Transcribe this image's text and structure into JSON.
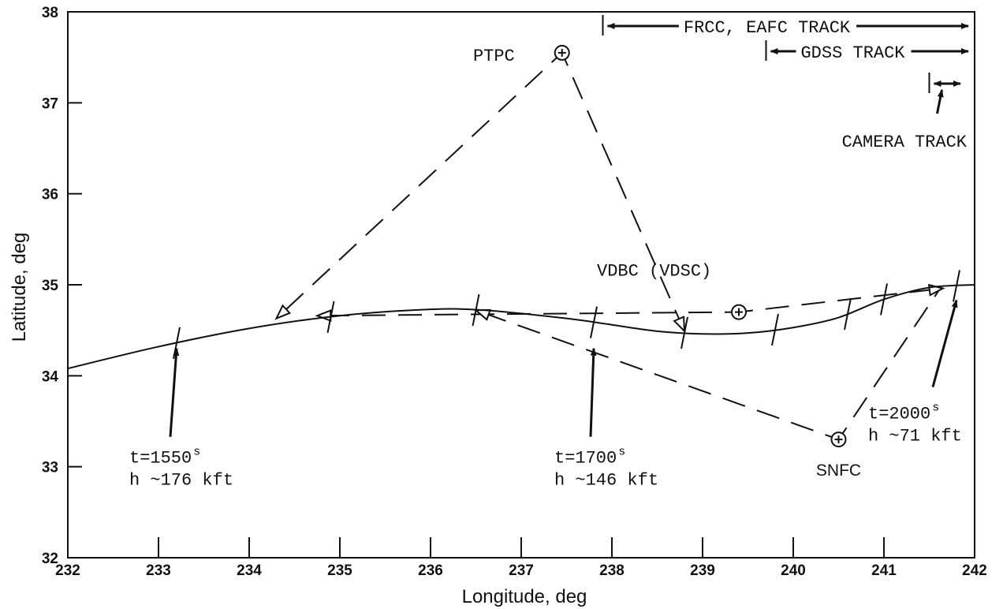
{
  "chart_data": {
    "type": "line",
    "xlabel": "Longitude, deg",
    "ylabel": "Latitude, deg",
    "xlim": [
      232,
      242
    ],
    "ylim": [
      32,
      38
    ],
    "x_ticks": [
      "232",
      "233",
      "234",
      "235",
      "236",
      "237",
      "238",
      "239",
      "240",
      "241",
      "242"
    ],
    "y_ticks": [
      "32",
      "33",
      "34",
      "35",
      "36",
      "37",
      "38"
    ],
    "trajectory": {
      "points": [
        [
          232.0,
          34.08
        ],
        [
          233.0,
          34.32
        ],
        [
          234.0,
          34.52
        ],
        [
          235.0,
          34.66
        ],
        [
          236.0,
          34.73
        ],
        [
          236.6,
          34.72
        ],
        [
          237.5,
          34.63
        ],
        [
          238.0,
          34.56
        ],
        [
          238.5,
          34.49
        ],
        [
          239.0,
          34.46
        ],
        [
          239.5,
          34.47
        ],
        [
          240.0,
          34.53
        ],
        [
          240.5,
          34.64
        ],
        [
          241.0,
          34.84
        ],
        [
          241.5,
          34.97
        ],
        [
          242.0,
          35.0
        ]
      ],
      "tick_marks": [
        233.2,
        234.9,
        236.5,
        237.8,
        238.8,
        239.8,
        240.6,
        241.0,
        241.8
      ]
    },
    "stations": [
      {
        "id": "ptpc",
        "name": "PTPC",
        "lon": 237.45,
        "lat": 37.55
      },
      {
        "id": "vdbc",
        "name": "VDBC (VDSC)",
        "lon": 239.4,
        "lat": 34.7
      },
      {
        "id": "snfc",
        "name": "SNFC",
        "lon": 240.5,
        "lat": 33.3
      }
    ],
    "sight_lines": [
      {
        "from": [
          237.45,
          37.55
        ],
        "to": [
          234.3,
          34.63
        ]
      },
      {
        "from": [
          237.45,
          37.55
        ],
        "to": [
          238.8,
          34.49
        ]
      },
      {
        "from": [
          239.4,
          34.7
        ],
        "to": [
          234.75,
          34.66
        ]
      },
      {
        "from": [
          239.4,
          34.7
        ],
        "to": [
          241.65,
          34.96
        ]
      },
      {
        "from": [
          240.5,
          33.3
        ],
        "to": [
          236.5,
          34.72
        ]
      },
      {
        "from": [
          240.5,
          33.3
        ],
        "to": [
          241.6,
          34.93
        ]
      }
    ],
    "open_arrowheads": [
      {
        "at": [
          234.3,
          34.63
        ],
        "from": [
          237.45,
          37.55
        ]
      },
      {
        "at": [
          238.8,
          34.49
        ],
        "from": [
          237.45,
          37.55
        ]
      },
      {
        "at": [
          234.75,
          34.66
        ],
        "from": [
          239.4,
          34.7
        ]
      },
      {
        "at": [
          236.5,
          34.72
        ],
        "from": [
          240.5,
          33.3
        ]
      },
      {
        "at": [
          241.65,
          34.96
        ],
        "from": [
          239.4,
          34.7
        ]
      }
    ],
    "time_labels": [
      {
        "id": "t1550",
        "t": "t=1550",
        "sup": "s",
        "h": "h ~176 kft",
        "lon": 233.2,
        "lat": 34.3
      },
      {
        "id": "t1700",
        "t": "t=1700",
        "sup": "s",
        "h": "h ~146 kft",
        "lon": 237.8,
        "lat": 34.3
      },
      {
        "id": "t2000",
        "t": "t=2000",
        "sup": "s",
        "h": "h ~71 kft",
        "lon": 241.8,
        "lat": 34.83
      }
    ],
    "tracking_ranges": [
      {
        "id": "frcc-eafc",
        "label": "FRCC, EAFC TRACK",
        "start": 237.9,
        "end": 242
      },
      {
        "id": "gdss",
        "label": "GDSS TRACK",
        "start": 239.7,
        "end": 242
      },
      {
        "id": "camera",
        "label": "CAMERA TRACK",
        "start": 241.5,
        "end": 242
      }
    ]
  }
}
